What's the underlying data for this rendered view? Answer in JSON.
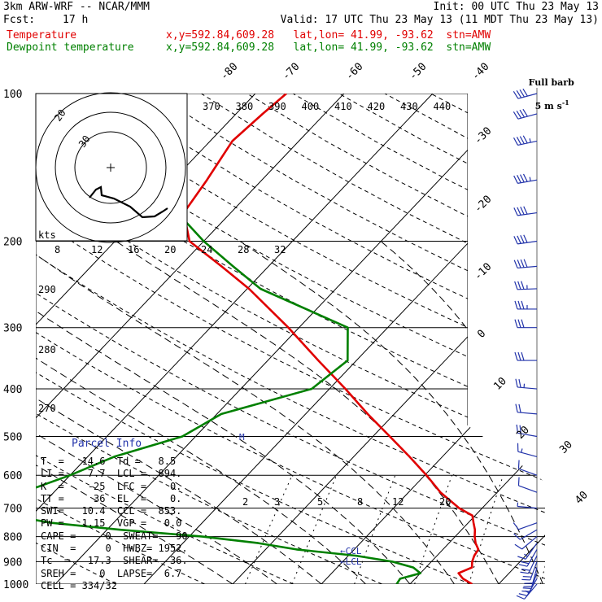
{
  "header": {
    "model": "3km ARW-WRF -- NCAR/MMM",
    "init": "Init: 00 UTC Thu 23 May 13",
    "fcst_label": "Fcst:",
    "fcst_value": "17 h",
    "valid": "Valid: 17 UTC Thu 23 May 13 (11 MDT Thu 23 May 13)",
    "lines": [
      {
        "name": "Temperature",
        "loc": "x,y=592.84,609.28   lat,lon= 41.99, -93.62  stn=AMW",
        "color": "#e00000"
      },
      {
        "name": "Dewpoint temperature",
        "loc": "x,y=592.84,609.28   lat,lon= 41.99, -93.62  stn=AMW",
        "color": "#008000"
      }
    ]
  },
  "wind_label": {
    "line1": "Full barb",
    "line2": "5 m s",
    "sup": "-1"
  },
  "parcel_info": {
    "title": "Parcel Info",
    "rows": [
      "T  =   14.6  Td =   8.5",
      "LI =    7.7  LCL =  894.",
      "K  =    -25  LFC =    0.",
      "TT =     36  EL  =    0.",
      "SWI=   10.4  CCL =  853.",
      "PW =   1.15  VGP =   0.0",
      "CAPE =     0  SWEAT=   90",
      "CIN  =     0  HWBZ= 1952.",
      "Tc  =   17.3  SHEAR=  36.",
      "SREH =    0  LAPSE=  6.7",
      "CELL = 334/32"
    ]
  },
  "markers": {
    "ccl": "←CCL",
    "lcl": "←LCL",
    "m": "M"
  },
  "chart_data": {
    "type": "line",
    "title": "",
    "ylabel": "",
    "xlabel": "",
    "y_scale": "log-pressure",
    "ylim": [
      1000,
      100
    ],
    "pressure_ticks": [
      100,
      200,
      300,
      400,
      500,
      600,
      700,
      800,
      900,
      1000
    ],
    "isotherm_labels": [
      -80,
      -70,
      -60,
      -50,
      -40,
      -30,
      -20,
      -10,
      0,
      10,
      20,
      30,
      40
    ],
    "theta_e_labels": [
      370,
      380,
      390,
      400,
      410,
      420,
      430,
      440
    ],
    "theta_labels": [
      290,
      280,
      270
    ],
    "mixing_ratio_labels": [
      2,
      3,
      5,
      8,
      12,
      20
    ],
    "hodograph": {
      "unit": "kts",
      "speed_labels": [
        8,
        12,
        16,
        20,
        24,
        28,
        32
      ],
      "ring_labels": [
        30,
        20
      ]
    },
    "series": [
      {
        "name": "Temperature",
        "color": "#e00000",
        "points": [
          [
            1000,
            17
          ],
          [
            975,
            15.4
          ],
          [
            950,
            14.3
          ],
          [
            925,
            15.2
          ],
          [
            900,
            14.6
          ],
          [
            875,
            14.2
          ],
          [
            850,
            14.0
          ],
          [
            825,
            13.0
          ],
          [
            800,
            12.2
          ],
          [
            775,
            11.5
          ],
          [
            750,
            10.6
          ],
          [
            725,
            9.7
          ],
          [
            700,
            7.4
          ],
          [
            650,
            3.6
          ],
          [
            600,
            0.2
          ],
          [
            550,
            -3.7
          ],
          [
            500,
            -8.1
          ],
          [
            450,
            -13.0
          ],
          [
            400,
            -18.2
          ],
          [
            350,
            -24.3
          ],
          [
            300,
            -31.2
          ],
          [
            250,
            -39.8
          ],
          [
            225,
            -45.3
          ],
          [
            200,
            -51.6
          ],
          [
            175,
            -55.3
          ],
          [
            150,
            -56.2
          ],
          [
            125,
            -57.5
          ],
          [
            110,
            -57.0
          ],
          [
            100,
            -56.5
          ]
        ]
      },
      {
        "name": "Dewpoint temperature",
        "color": "#008000",
        "points": [
          [
            1000,
            8.5
          ],
          [
            975,
            8.3
          ],
          [
            950,
            10.0
          ],
          [
            925,
            8.6
          ],
          [
            900,
            5.6
          ],
          [
            875,
            0.8
          ],
          [
            850,
            -6.5
          ],
          [
            825,
            -11.5
          ],
          [
            800,
            -18.5
          ],
          [
            775,
            -28.5
          ],
          [
            750,
            -37.0
          ],
          [
            725,
            -42.5
          ],
          [
            700,
            -46.5
          ],
          [
            650,
            -43.5
          ],
          [
            600,
            -40.0
          ],
          [
            550,
            -37.0
          ],
          [
            500,
            -31.5
          ],
          [
            450,
            -29.5
          ],
          [
            400,
            -22.0
          ],
          [
            350,
            -21.0
          ],
          [
            300,
            -24.5
          ],
          [
            250,
            -38.5
          ],
          [
            225,
            -44.0
          ],
          [
            200,
            -50.0
          ],
          [
            175,
            -56.0
          ],
          [
            150,
            -61.5
          ],
          [
            125,
            -67.0
          ],
          [
            110,
            -68.0
          ],
          [
            100,
            -70.5
          ]
        ]
      }
    ],
    "winds": [
      {
        "p": 1000,
        "dir": 220,
        "spd": 7
      },
      {
        "p": 975,
        "dir": 210,
        "spd": 9
      },
      {
        "p": 950,
        "dir": 200,
        "spd": 10
      },
      {
        "p": 925,
        "dir": 195,
        "spd": 11
      },
      {
        "p": 900,
        "dir": 200,
        "spd": 10
      },
      {
        "p": 875,
        "dir": 205,
        "spd": 11
      },
      {
        "p": 850,
        "dir": 210,
        "spd": 10
      },
      {
        "p": 825,
        "dir": 215,
        "spd": 8
      },
      {
        "p": 800,
        "dir": 230,
        "spd": 7
      },
      {
        "p": 775,
        "dir": 240,
        "spd": 6
      },
      {
        "p": 750,
        "dir": 250,
        "spd": 5
      },
      {
        "p": 700,
        "dir": 275,
        "spd": 4
      },
      {
        "p": 650,
        "dir": 290,
        "spd": 5
      },
      {
        "p": 600,
        "dir": 290,
        "spd": 6
      },
      {
        "p": 550,
        "dir": 285,
        "spd": 8
      },
      {
        "p": 500,
        "dir": 280,
        "spd": 10
      },
      {
        "p": 450,
        "dir": 275,
        "spd": 12
      },
      {
        "p": 400,
        "dir": 275,
        "spd": 14
      },
      {
        "p": 350,
        "dir": 270,
        "spd": 16
      },
      {
        "p": 300,
        "dir": 270,
        "spd": 17
      },
      {
        "p": 275,
        "dir": 270,
        "spd": 18
      },
      {
        "p": 250,
        "dir": 268,
        "spd": 19
      },
      {
        "p": 225,
        "dir": 265,
        "spd": 20
      },
      {
        "p": 200,
        "dir": 262,
        "spd": 21
      },
      {
        "p": 175,
        "dir": 262,
        "spd": 22
      },
      {
        "p": 150,
        "dir": 260,
        "spd": 24
      },
      {
        "p": 125,
        "dir": 258,
        "spd": 23
      },
      {
        "p": 110,
        "dir": 255,
        "spd": 22
      },
      {
        "p": 100,
        "dir": 255,
        "spd": 20
      }
    ]
  }
}
